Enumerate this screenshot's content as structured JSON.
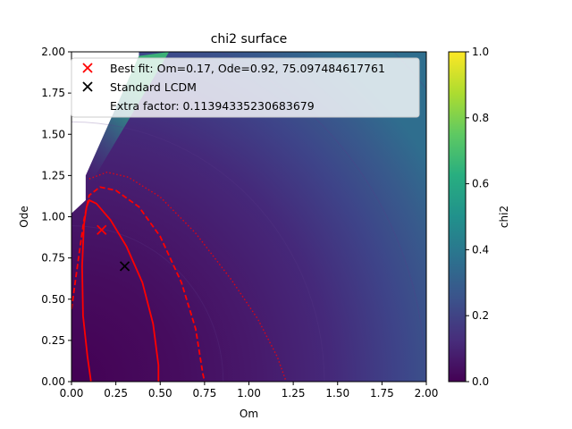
{
  "chart_data": {
    "type": "heatmap",
    "title": "chi2 surface",
    "xlabel": "Om",
    "ylabel": "Ode",
    "xlim": [
      0,
      2
    ],
    "ylim": [
      0,
      2
    ],
    "x_ticks": [
      "0.00",
      "0.25",
      "0.50",
      "0.75",
      "1.00",
      "1.25",
      "1.50",
      "1.75",
      "2.00"
    ],
    "y_ticks": [
      "0.00",
      "0.25",
      "0.50",
      "0.75",
      "1.00",
      "1.25",
      "1.50",
      "1.75",
      "2.00"
    ],
    "colorbar": {
      "label": "chi2",
      "range": [
        0,
        1
      ],
      "ticks": [
        "0.0",
        "0.2",
        "0.4",
        "0.6",
        "0.8",
        "1.0"
      ],
      "colormap": "viridis"
    },
    "legend": {
      "placement": "top-right",
      "entries": [
        {
          "label": "Best fit: Om=0.17, Ode=0.92, 75.097484617761",
          "marker": "x",
          "color": "#ff0000"
        },
        {
          "label": "Standard LCDM",
          "marker": "x",
          "color": "#000000"
        },
        {
          "label": "Extra factor: 0.11394335230683679",
          "marker": "none",
          "color": ""
        }
      ]
    },
    "points": [
      {
        "name": "best-fit",
        "x": 0.17,
        "y": 0.92,
        "color": "#ff0000"
      },
      {
        "name": "standard-lcdm",
        "x": 0.3,
        "y": 0.7,
        "color": "#000000"
      }
    ],
    "contours": [
      {
        "level": "inner",
        "style": "solid",
        "color": "#ff0000",
        "points": [
          [
            0.11,
            0
          ],
          [
            0.09,
            0.15
          ],
          [
            0.065,
            0.4
          ],
          [
            0.06,
            0.7
          ],
          [
            0.07,
            0.95
          ],
          [
            0.085,
            1.06
          ],
          [
            0.1,
            1.1
          ],
          [
            0.14,
            1.08
          ],
          [
            0.22,
            0.98
          ],
          [
            0.31,
            0.82
          ],
          [
            0.4,
            0.6
          ],
          [
            0.46,
            0.35
          ],
          [
            0.49,
            0.1
          ],
          [
            0.49,
            0
          ]
        ]
      },
      {
        "level": "middle",
        "style": "dashed",
        "color": "#ff0000",
        "points": [
          [
            0,
            0.44
          ],
          [
            0.04,
            0.75
          ],
          [
            0.07,
            0.98
          ],
          [
            0.1,
            1.13
          ],
          [
            0.16,
            1.18
          ],
          [
            0.25,
            1.16
          ],
          [
            0.38,
            1.06
          ],
          [
            0.5,
            0.88
          ],
          [
            0.62,
            0.6
          ],
          [
            0.7,
            0.32
          ],
          [
            0.74,
            0.05
          ],
          [
            0.75,
            0
          ]
        ]
      },
      {
        "level": "outer",
        "style": "dotted",
        "color": "#ff0000",
        "points": [
          [
            0.1,
            1.23
          ],
          [
            0.2,
            1.27
          ],
          [
            0.32,
            1.24
          ],
          [
            0.5,
            1.12
          ],
          [
            0.7,
            0.9
          ],
          [
            0.9,
            0.62
          ],
          [
            1.05,
            0.38
          ],
          [
            1.16,
            0.15
          ],
          [
            1.21,
            0
          ]
        ]
      }
    ],
    "masked_region": "Om-Ode plane above the line Ode = 1.05 + 1.9*Om and low-Om strip left blank"
  }
}
